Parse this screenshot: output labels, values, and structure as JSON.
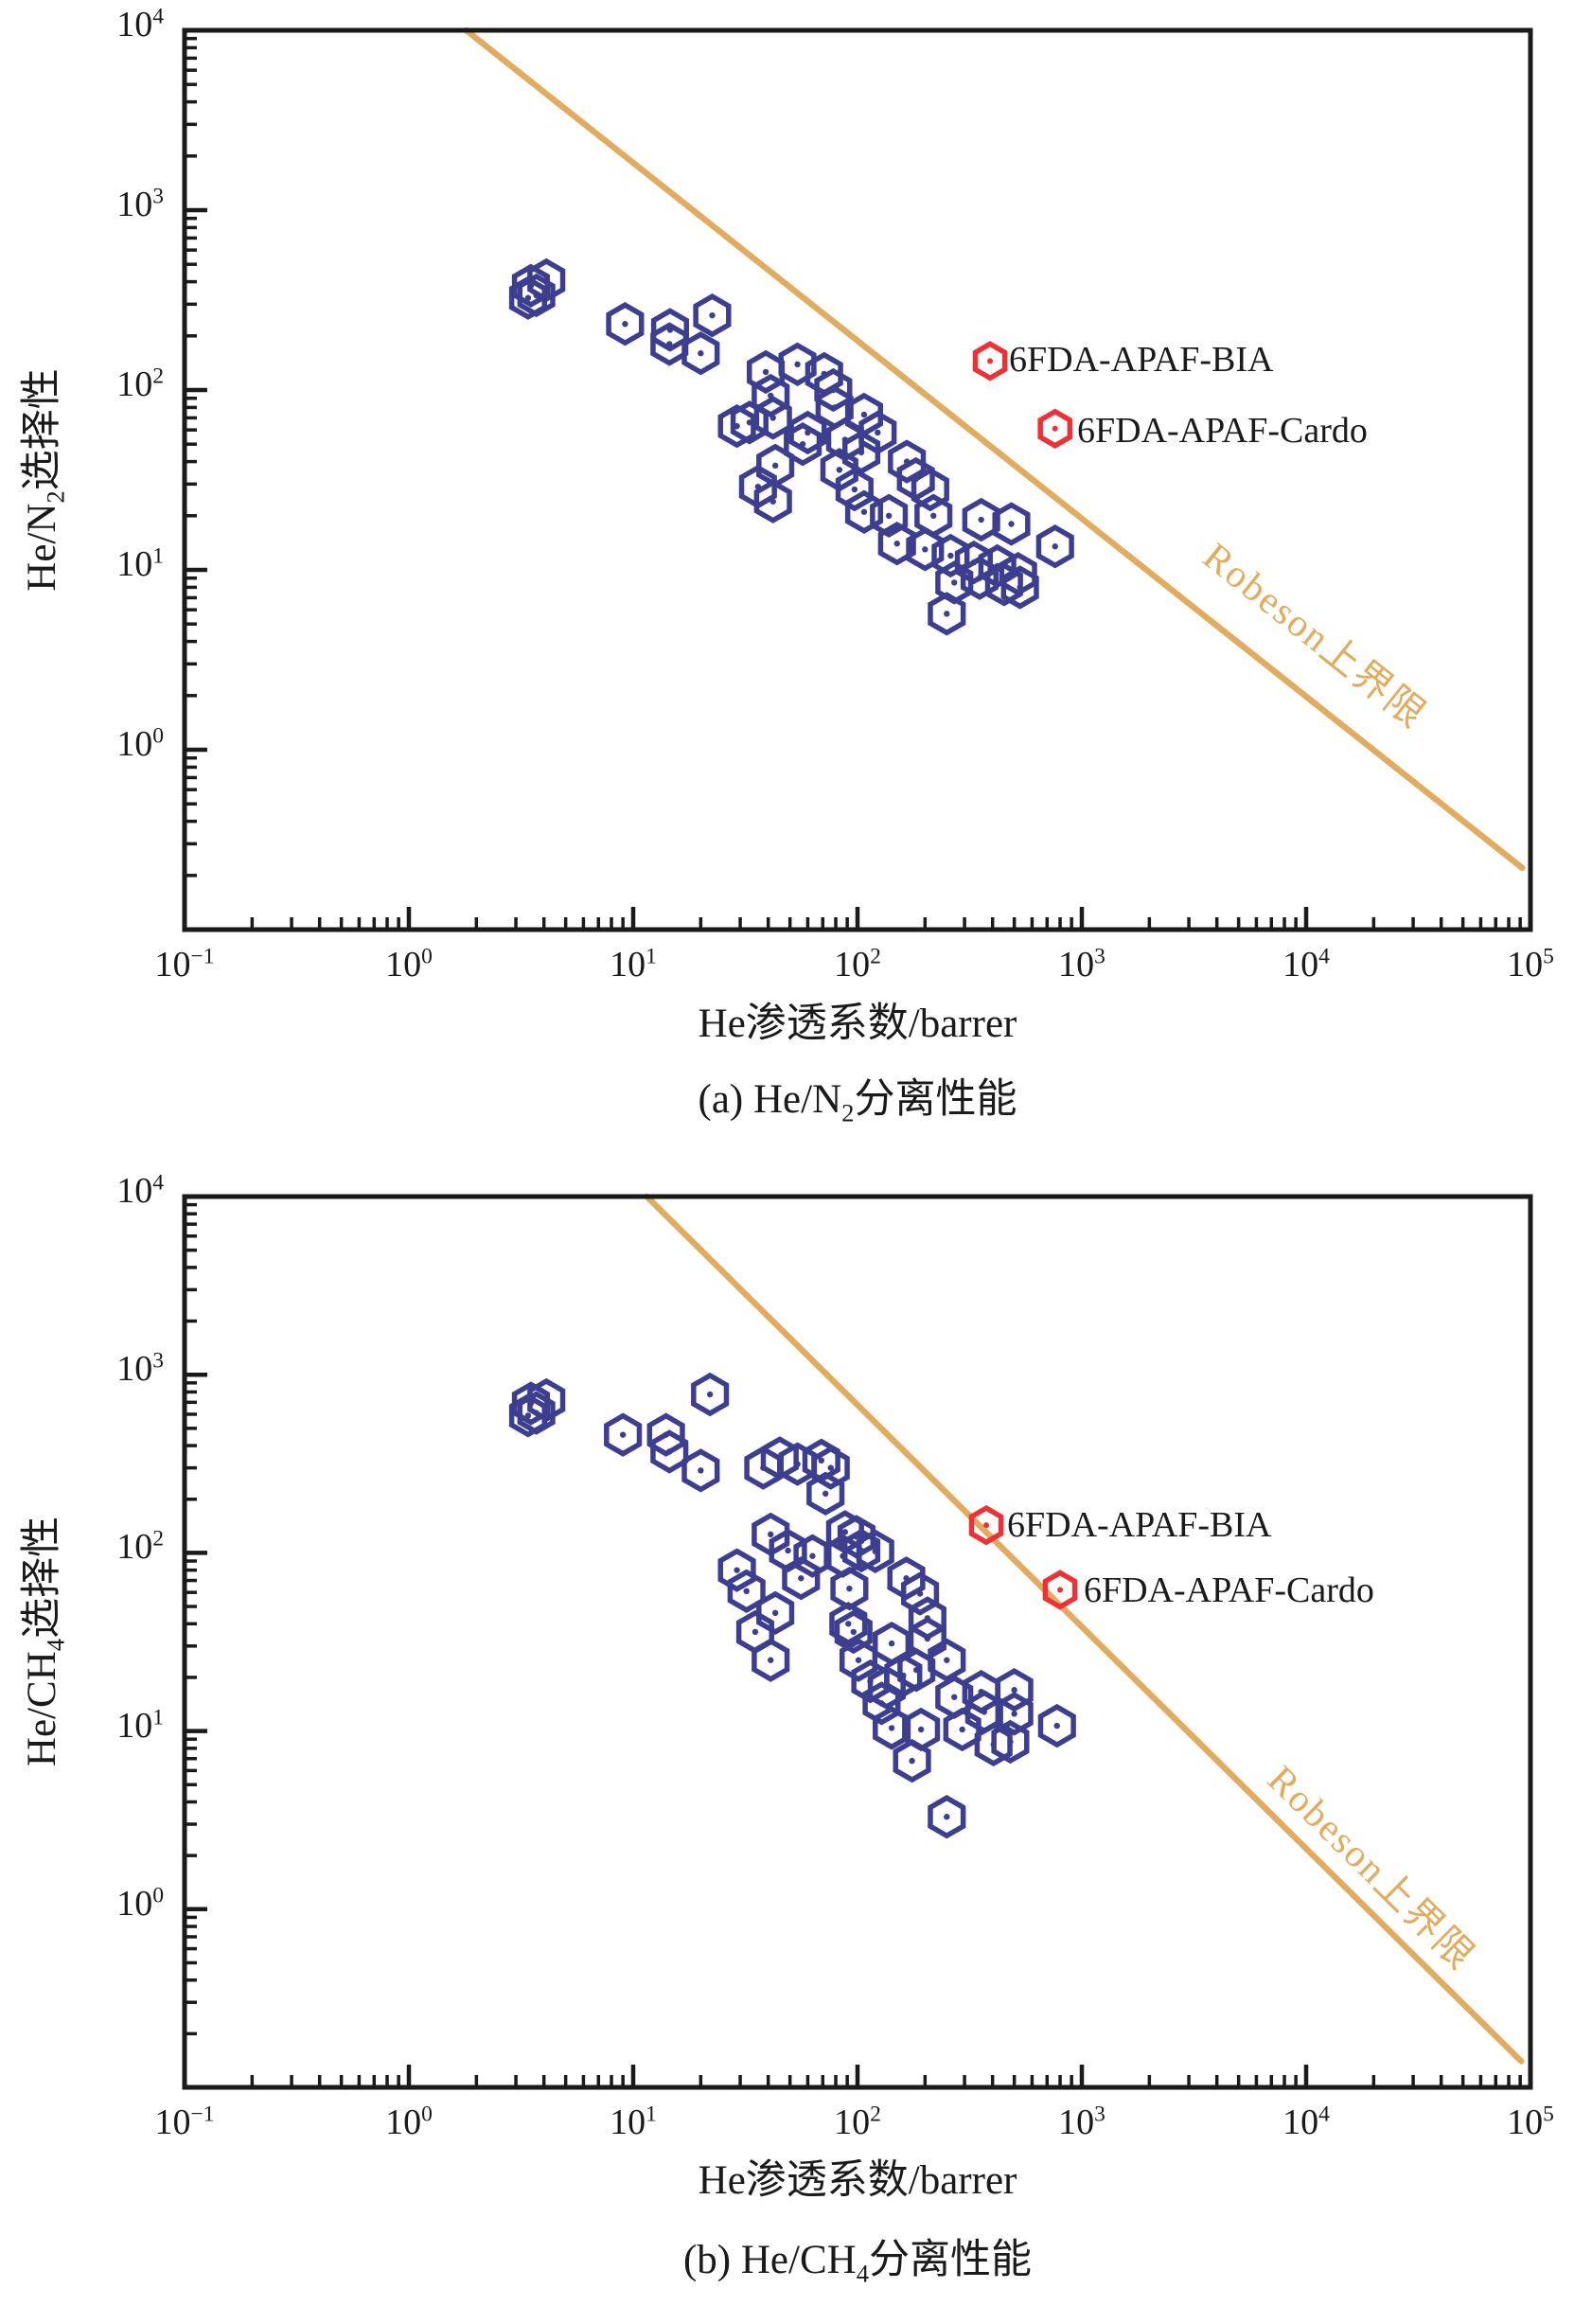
{
  "figure_background": "#FFFFFF",
  "colors": {
    "axis": "#1A1A1A",
    "scatter_point": "#3E3E91",
    "highlight_point": "#EC3237",
    "upper_bound_line": "#E2AC60",
    "label_text": "#1A1A1A"
  },
  "chart_data": [
    {
      "type": "scatter",
      "panel": "a",
      "caption_parts": {
        "pre": "(a) He/N",
        "sub": "2",
        "post": "分离性能"
      },
      "xlabel": "He渗透系数/barrer",
      "ylabel_parts": {
        "pre": "He/N",
        "sub": "2",
        "post": "选择性"
      },
      "x_scale": "log",
      "y_scale": "log",
      "xlim": [
        0.1,
        100000
      ],
      "ylim": [
        0.1,
        10000
      ],
      "x_tick_exponents": [
        -1,
        0,
        1,
        2,
        3,
        4,
        5
      ],
      "y_tick_exponents": [
        0,
        1,
        2,
        3,
        4
      ],
      "grid": false,
      "series": [
        {
          "marker": "open-hexagon-with-dot",
          "color": "#3E3E91",
          "points": [
            [
              3.5,
              380
            ],
            [
              4.1,
              408
            ],
            [
              3.4,
              325
            ],
            [
              3.7,
              336
            ],
            [
              9.2,
              233
            ],
            [
              14.6,
              216
            ],
            [
              14.5,
              180
            ],
            [
              20,
              160
            ],
            [
              22.5,
              260
            ],
            [
              39,
              126
            ],
            [
              54,
              139
            ],
            [
              71,
              123
            ],
            [
              78,
              100
            ],
            [
              79,
              80
            ],
            [
              41,
              93
            ],
            [
              33,
              66
            ],
            [
              29,
              63
            ],
            [
              42,
              70
            ],
            [
              60,
              58
            ],
            [
              57,
              50
            ],
            [
              107,
              73
            ],
            [
              123,
              58
            ],
            [
              88,
              53
            ],
            [
              104,
              45
            ],
            [
              43,
              38
            ],
            [
              36,
              29
            ],
            [
              42,
              24
            ],
            [
              83,
              36
            ],
            [
              97,
              28
            ],
            [
              166,
              40
            ],
            [
              182,
              32
            ],
            [
              211,
              28
            ],
            [
              107,
              21
            ],
            [
              138,
              20
            ],
            [
              218,
              20
            ],
            [
              356,
              19
            ],
            [
              485,
              18
            ],
            [
              150,
              14
            ],
            [
              200,
              13
            ],
            [
              260,
              12
            ],
            [
              330,
              11
            ],
            [
              420,
              10.5
            ],
            [
              520,
              9.5
            ],
            [
              350,
              9
            ],
            [
              270,
              8.5
            ],
            [
              450,
              8.3
            ],
            [
              530,
              8
            ],
            [
              250,
              5.7
            ],
            [
              760,
              13.5
            ]
          ]
        }
      ],
      "highlights": [
        {
          "label": "6FDA-APAF-BIA",
          "x": 390,
          "y": 145,
          "color": "#EC3237"
        },
        {
          "label": "6FDA-APAF-Cardo",
          "x": 760,
          "y": 61,
          "color": "#EC3237"
        }
      ],
      "upper_bound": {
        "label": "Robeson上界限",
        "color": "#E2AC60",
        "x1": 1.8,
        "y1": 10000,
        "x2": 92000,
        "y2": 0.22
      }
    },
    {
      "type": "scatter",
      "panel": "b",
      "caption_parts": {
        "pre": "(b) He/CH",
        "sub": "4",
        "post": "分离性能"
      },
      "xlabel": "He渗透系数/barrer",
      "ylabel_parts": {
        "pre": "He/CH",
        "sub": "4",
        "post": "选择性"
      },
      "x_scale": "log",
      "y_scale": "log",
      "xlim": [
        0.1,
        100000
      ],
      "ylim": [
        0.1,
        10000
      ],
      "x_tick_exponents": [
        -1,
        0,
        1,
        2,
        3,
        4,
        5
      ],
      "y_tick_exponents": [
        0,
        1,
        2,
        3,
        4
      ],
      "grid": false,
      "series": [
        {
          "marker": "open-hexagon-with-dot",
          "color": "#3E3E91",
          "points": [
            [
              3.5,
              690
            ],
            [
              4.1,
              720
            ],
            [
              3.4,
              590
            ],
            [
              3.7,
              610
            ],
            [
              9,
              460
            ],
            [
              14,
              460
            ],
            [
              14.5,
              370
            ],
            [
              20,
              290
            ],
            [
              22,
              775
            ],
            [
              38,
              300
            ],
            [
              45,
              340
            ],
            [
              54,
              315
            ],
            [
              69,
              330
            ],
            [
              76,
              300
            ],
            [
              72,
              215
            ],
            [
              41,
              127
            ],
            [
              49,
              103
            ],
            [
              63,
              96
            ],
            [
              86,
              96
            ],
            [
              88,
              131
            ],
            [
              99,
              123
            ],
            [
              104,
              103
            ],
            [
              120,
              102
            ],
            [
              29,
              80
            ],
            [
              32,
              61
            ],
            [
              56,
              72
            ],
            [
              92,
              63
            ],
            [
              43,
              46
            ],
            [
              35,
              36
            ],
            [
              41,
              25
            ],
            [
              91,
              40
            ],
            [
              96,
              36
            ],
            [
              165,
              72
            ],
            [
              190,
              59
            ],
            [
              205,
              43
            ],
            [
              205,
              33
            ],
            [
              142,
              31
            ],
            [
              250,
              25
            ],
            [
              183,
              22
            ],
            [
              101,
              25
            ],
            [
              114,
              19
            ],
            [
              135,
              17.5
            ],
            [
              160,
              20.5
            ],
            [
              128,
              14.3
            ],
            [
              142,
              10.4
            ],
            [
              192,
              10.2
            ],
            [
              270,
              15.5
            ],
            [
              356,
              16.6
            ],
            [
              500,
              17
            ],
            [
              500,
              12.5
            ],
            [
              367,
              12.8
            ],
            [
              293,
              10.2
            ],
            [
              404,
              8.4
            ],
            [
              480,
              8.7
            ],
            [
              175,
              6.8
            ],
            [
              250,
              3.3
            ],
            [
              775,
              10.7
            ]
          ]
        }
      ],
      "highlights": [
        {
          "label": "6FDA-APAF-BIA",
          "x": 375,
          "y": 143,
          "color": "#EC3237"
        },
        {
          "label": "6FDA-APAF-Cardo",
          "x": 800,
          "y": 62,
          "color": "#EC3237"
        }
      ],
      "upper_bound": {
        "label": "Robeson上界限",
        "color": "#E2AC60",
        "x1": 11.5,
        "y1": 10000,
        "x2": 91000,
        "y2": 0.14
      }
    }
  ]
}
